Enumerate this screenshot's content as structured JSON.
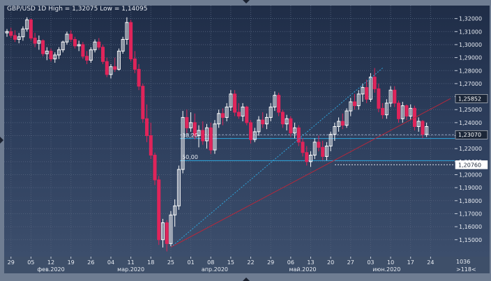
{
  "title": "GBP/USD 1D High = 1,32075 Low = 1,14095",
  "fib_labels": [
    "38,20",
    "50,00"
  ],
  "corner": {
    "line1": "1036",
    "line2": ">118<"
  },
  "price_labels": {
    "current": "1,23070",
    "upper": "1,25852",
    "lower": "1,20760"
  },
  "colors": {
    "up": "#ffffff",
    "down": "#e0245a",
    "fib": "#2fa6dc",
    "trend_up": "#2fa6dc",
    "trend_down": "#b4283c",
    "grid": "#4f5e79"
  },
  "chart_data": {
    "type": "candlestick",
    "title": "GBP/USD 1D High = 1,32075 Low = 1,14095",
    "symbol": "GBP/USD",
    "timeframe": "1D",
    "high": 1.32075,
    "low": 1.14095,
    "ylim": [
      1.137,
      1.33
    ],
    "yticks": [
      "1,32000",
      "1,31000",
      "1,30000",
      "1,29000",
      "1,28000",
      "1,27000",
      "1,26000",
      "1,25000",
      "1,24000",
      "1,23000",
      "1,22000",
      "1,21000",
      "1,20000",
      "1,19000",
      "1,18000",
      "1,17000",
      "1,16000",
      "1,15000"
    ],
    "xticks": [
      "29",
      "05",
      "12",
      "19",
      "26",
      "04",
      "11",
      "18",
      "25",
      "01",
      "08",
      "15",
      "22",
      "29",
      "06",
      "13",
      "20",
      "27",
      "03",
      "10",
      "17",
      "24"
    ],
    "xtick_index": [
      1,
      6,
      11,
      16,
      21,
      26,
      31,
      36,
      41,
      46,
      51,
      56,
      61,
      66,
      71,
      76,
      81,
      86,
      91,
      96,
      101,
      106
    ],
    "months": [
      "фев.2020",
      "мар.2020",
      "апр.2020",
      "май.2020",
      "июн.2020"
    ],
    "month_index": [
      11,
      31,
      52,
      74,
      95
    ],
    "fib_levels": [
      {
        "label": "38,20",
        "value": 1.2278
      },
      {
        "label": "50,00",
        "value": 1.2108
      }
    ],
    "horizontal_lines": [
      1.2307,
      1.2076
    ],
    "trendlines": [
      {
        "from_index": 41,
        "from": 1.1442,
        "to_index": 94,
        "to": 1.282
      },
      {
        "from_index": 41,
        "from": 1.1442,
        "to_index": 111,
        "to": 1.2585
      }
    ],
    "candles": [
      [
        1.309,
        1.312,
        1.306,
        1.31
      ],
      [
        1.31,
        1.313,
        1.305,
        1.307
      ],
      [
        1.307,
        1.311,
        1.302,
        1.304
      ],
      [
        1.304,
        1.309,
        1.301,
        1.306
      ],
      [
        1.306,
        1.314,
        1.303,
        1.312
      ],
      [
        1.312,
        1.321,
        1.31,
        1.319
      ],
      [
        1.319,
        1.32,
        1.303,
        1.305
      ],
      [
        1.305,
        1.309,
        1.298,
        1.301
      ],
      [
        1.301,
        1.307,
        1.296,
        1.303
      ],
      [
        1.303,
        1.304,
        1.291,
        1.293
      ],
      [
        1.293,
        1.298,
        1.288,
        1.295
      ],
      [
        1.295,
        1.297,
        1.287,
        1.289
      ],
      [
        1.289,
        1.294,
        1.286,
        1.292
      ],
      [
        1.292,
        1.298,
        1.289,
        1.296
      ],
      [
        1.296,
        1.303,
        1.294,
        1.302
      ],
      [
        1.302,
        1.31,
        1.3,
        1.308
      ],
      [
        1.308,
        1.311,
        1.302,
        1.304
      ],
      [
        1.304,
        1.306,
        1.297,
        1.299
      ],
      [
        1.299,
        1.303,
        1.295,
        1.3
      ],
      [
        1.3,
        1.302,
        1.289,
        1.291
      ],
      [
        1.291,
        1.295,
        1.285,
        1.288
      ],
      [
        1.288,
        1.298,
        1.286,
        1.296
      ],
      [
        1.296,
        1.304,
        1.294,
        1.302
      ],
      [
        1.302,
        1.305,
        1.296,
        1.298
      ],
      [
        1.298,
        1.3,
        1.285,
        1.287
      ],
      [
        1.287,
        1.29,
        1.275,
        1.277
      ],
      [
        1.277,
        1.285,
        1.274,
        1.283
      ],
      [
        1.283,
        1.29,
        1.279,
        1.281
      ],
      [
        1.281,
        1.297,
        1.28,
        1.295
      ],
      [
        1.295,
        1.306,
        1.293,
        1.304
      ],
      [
        1.304,
        1.321,
        1.3,
        1.317
      ],
      [
        1.317,
        1.319,
        1.287,
        1.289
      ],
      [
        1.289,
        1.295,
        1.278,
        1.281
      ],
      [
        1.281,
        1.285,
        1.265,
        1.268
      ],
      [
        1.268,
        1.27,
        1.24,
        1.243
      ],
      [
        1.243,
        1.254,
        1.225,
        1.23
      ],
      [
        1.23,
        1.24,
        1.212,
        1.215
      ],
      [
        1.215,
        1.217,
        1.192,
        1.196
      ],
      [
        1.196,
        1.199,
        1.146,
        1.15
      ],
      [
        1.15,
        1.166,
        1.144,
        1.163
      ],
      [
        1.163,
        1.165,
        1.141,
        1.147
      ],
      [
        1.147,
        1.172,
        1.145,
        1.169
      ],
      [
        1.169,
        1.181,
        1.16,
        1.176
      ],
      [
        1.176,
        1.207,
        1.173,
        1.204
      ],
      [
        1.204,
        1.249,
        1.201,
        1.244
      ],
      [
        1.244,
        1.25,
        1.232,
        1.236
      ],
      [
        1.236,
        1.248,
        1.233,
        1.24
      ],
      [
        1.24,
        1.247,
        1.227,
        1.23
      ],
      [
        1.23,
        1.238,
        1.221,
        1.234
      ],
      [
        1.234,
        1.241,
        1.223,
        1.226
      ],
      [
        1.226,
        1.239,
        1.22,
        1.236
      ],
      [
        1.236,
        1.24,
        1.216,
        1.219
      ],
      [
        1.219,
        1.242,
        1.216,
        1.239
      ],
      [
        1.239,
        1.25,
        1.236,
        1.247
      ],
      [
        1.247,
        1.251,
        1.238,
        1.244
      ],
      [
        1.244,
        1.255,
        1.241,
        1.252
      ],
      [
        1.252,
        1.265,
        1.249,
        1.262
      ],
      [
        1.262,
        1.265,
        1.245,
        1.248
      ],
      [
        1.248,
        1.255,
        1.243,
        1.245
      ],
      [
        1.245,
        1.255,
        1.241,
        1.252
      ],
      [
        1.252,
        1.253,
        1.238,
        1.24
      ],
      [
        1.24,
        1.242,
        1.224,
        1.227
      ],
      [
        1.227,
        1.236,
        1.225,
        1.233
      ],
      [
        1.233,
        1.245,
        1.23,
        1.242
      ],
      [
        1.242,
        1.248,
        1.236,
        1.239
      ],
      [
        1.239,
        1.247,
        1.235,
        1.244
      ],
      [
        1.244,
        1.255,
        1.241,
        1.252
      ],
      [
        1.252,
        1.264,
        1.249,
        1.261
      ],
      [
        1.261,
        1.263,
        1.245,
        1.248
      ],
      [
        1.248,
        1.25,
        1.236,
        1.239
      ],
      [
        1.239,
        1.246,
        1.234,
        1.243
      ],
      [
        1.243,
        1.245,
        1.229,
        1.232
      ],
      [
        1.232,
        1.24,
        1.228,
        1.236
      ],
      [
        1.236,
        1.238,
        1.222,
        1.225
      ],
      [
        1.225,
        1.228,
        1.214,
        1.217
      ],
      [
        1.217,
        1.222,
        1.207,
        1.21
      ],
      [
        1.21,
        1.218,
        1.206,
        1.215
      ],
      [
        1.215,
        1.228,
        1.212,
        1.225
      ],
      [
        1.225,
        1.23,
        1.218,
        1.221
      ],
      [
        1.221,
        1.226,
        1.211,
        1.214
      ],
      [
        1.214,
        1.225,
        1.211,
        1.222
      ],
      [
        1.222,
        1.233,
        1.218,
        1.231
      ],
      [
        1.231,
        1.24,
        1.226,
        1.237
      ],
      [
        1.237,
        1.244,
        1.233,
        1.241
      ],
      [
        1.241,
        1.247,
        1.235,
        1.238
      ],
      [
        1.238,
        1.251,
        1.236,
        1.249
      ],
      [
        1.249,
        1.259,
        1.245,
        1.256
      ],
      [
        1.256,
        1.262,
        1.25,
        1.253
      ],
      [
        1.253,
        1.265,
        1.25,
        1.262
      ],
      [
        1.262,
        1.27,
        1.256,
        1.267
      ],
      [
        1.267,
        1.273,
        1.255,
        1.258
      ],
      [
        1.258,
        1.278,
        1.256,
        1.275
      ],
      [
        1.275,
        1.282,
        1.263,
        1.266
      ],
      [
        1.266,
        1.27,
        1.248,
        1.251
      ],
      [
        1.251,
        1.255,
        1.243,
        1.246
      ],
      [
        1.246,
        1.258,
        1.243,
        1.255
      ],
      [
        1.255,
        1.268,
        1.252,
        1.265
      ],
      [
        1.265,
        1.268,
        1.252,
        1.255
      ],
      [
        1.255,
        1.257,
        1.24,
        1.243
      ],
      [
        1.243,
        1.256,
        1.24,
        1.253
      ],
      [
        1.253,
        1.254,
        1.242,
        1.245
      ],
      [
        1.245,
        1.254,
        1.242,
        1.251
      ],
      [
        1.251,
        1.253,
        1.234,
        1.237
      ],
      [
        1.237,
        1.244,
        1.233,
        1.241
      ],
      [
        1.241,
        1.242,
        1.228,
        1.231
      ],
      [
        1.231,
        1.24,
        1.229,
        1.237
      ]
    ]
  }
}
